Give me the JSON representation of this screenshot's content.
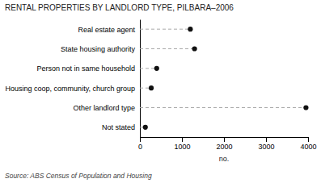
{
  "chart_data": {
    "type": "lollipop",
    "orientation": "horizontal",
    "title": "RENTAL PROPERTIES BY LANDLORD TYPE, PILBARA–2006",
    "categories": [
      "Real estate agent",
      "State housing authority",
      "Person not in same household",
      "Housing coop, community, church group",
      "Other landlord type",
      "Not stated"
    ],
    "values": [
      1200,
      1300,
      400,
      270,
      3950,
      130
    ],
    "color": "#111111",
    "marker": "circle",
    "line_style": "dashed",
    "x_label": "no.",
    "xlim": [
      0,
      4000
    ],
    "xticks": [
      0,
      1000,
      2000,
      3000,
      4000
    ],
    "annotations": [
      "Source: ABS Census of Population and Housing"
    ],
    "grid": false
  }
}
